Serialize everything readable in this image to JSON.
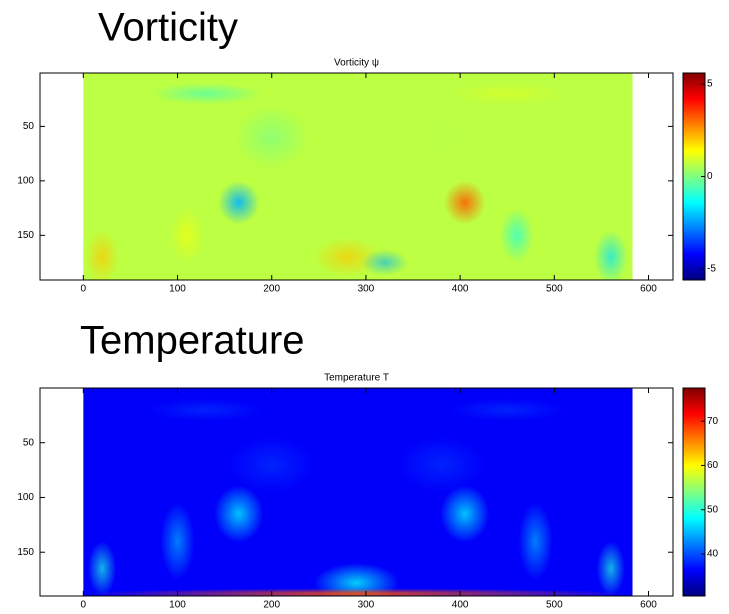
{
  "chart_data": [
    {
      "type": "heatmap",
      "heading": "Vorticity",
      "title": "Vorticity ψ",
      "colormap": "jet",
      "xlim": [
        -46,
        626
      ],
      "ylim": [
        1,
        191
      ],
      "xticks": [
        0,
        100,
        200,
        300,
        400,
        500,
        600
      ],
      "yticks": [
        50,
        100,
        150
      ],
      "image_xlim": [
        0,
        583
      ],
      "clim": [
        -5.6,
        5.6
      ],
      "cticks": [
        -5,
        0,
        5
      ]
    },
    {
      "type": "heatmap",
      "heading": "Temperature",
      "title": "Temperature T",
      "colormap": "jet",
      "xlim": [
        -46,
        626
      ],
      "ylim": [
        0,
        190
      ],
      "xticks": [
        0,
        100,
        200,
        300,
        400,
        500,
        600
      ],
      "yticks": [
        50,
        100,
        150
      ],
      "image_xlim": [
        0,
        583
      ],
      "clim": [
        30.5,
        77.5
      ],
      "cticks": [
        40,
        50,
        60,
        70
      ]
    }
  ]
}
